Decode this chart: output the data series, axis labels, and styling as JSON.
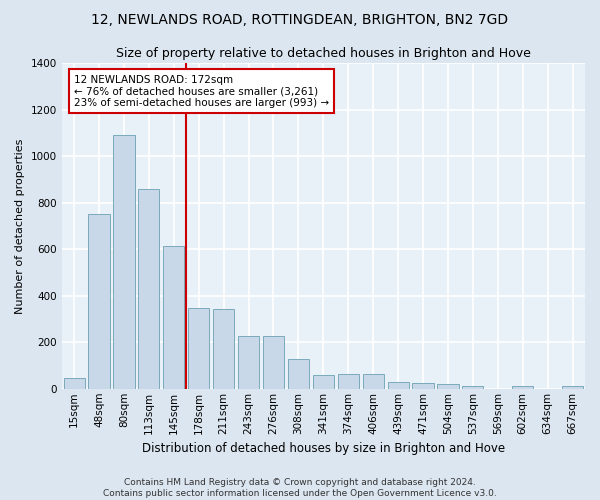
{
  "title": "12, NEWLANDS ROAD, ROTTINGDEAN, BRIGHTON, BN2 7GD",
  "subtitle": "Size of property relative to detached houses in Brighton and Hove",
  "xlabel": "Distribution of detached houses by size in Brighton and Hove",
  "ylabel": "Number of detached properties",
  "footer_line1": "Contains HM Land Registry data © Crown copyright and database right 2024.",
  "footer_line2": "Contains public sector information licensed under the Open Government Licence v3.0.",
  "categories": [
    "15sqm",
    "48sqm",
    "80sqm",
    "113sqm",
    "145sqm",
    "178sqm",
    "211sqm",
    "243sqm",
    "276sqm",
    "308sqm",
    "341sqm",
    "374sqm",
    "406sqm",
    "439sqm",
    "471sqm",
    "504sqm",
    "537sqm",
    "569sqm",
    "602sqm",
    "634sqm",
    "667sqm"
  ],
  "values": [
    47,
    750,
    1090,
    860,
    615,
    348,
    345,
    225,
    225,
    130,
    60,
    65,
    65,
    27,
    25,
    20,
    12,
    0,
    10,
    0,
    10
  ],
  "bar_color": "#c8d8e8",
  "bar_edge_color": "#7aaabb",
  "property_line_x": 4.5,
  "property_line_color": "#cc0000",
  "annotation_text": "12 NEWLANDS ROAD: 172sqm\n← 76% of detached houses are smaller (3,261)\n23% of semi-detached houses are larger (993) →",
  "annotation_box_color": "#ffffff",
  "annotation_box_edge_color": "#cc0000",
  "ylim": [
    0,
    1400
  ],
  "background_color": "#dce6f0",
  "plot_background_color": "#e8f0f8",
  "grid_color": "#ffffff",
  "title_fontsize": 10,
  "subtitle_fontsize": 9,
  "tick_fontsize": 7.5,
  "ylabel_fontsize": 8,
  "xlabel_fontsize": 8.5,
  "footer_fontsize": 6.5
}
